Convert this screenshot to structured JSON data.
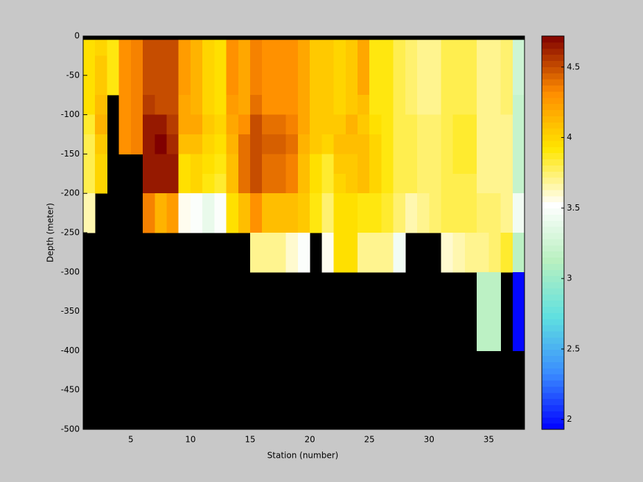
{
  "chart_data": {
    "type": "heatmap",
    "xlabel": "Station (number)",
    "ylabel": "Depth (meter)",
    "x": [
      1,
      2,
      3,
      4,
      5,
      6,
      7,
      8,
      9,
      10,
      11,
      12,
      13,
      14,
      15,
      16,
      17,
      18,
      19,
      20,
      21,
      22,
      23,
      24,
      25,
      26,
      27,
      28,
      29,
      30,
      31,
      32,
      33,
      34,
      35,
      36,
      37,
      38
    ],
    "y": [
      0,
      -5,
      -25,
      -50,
      -75,
      -100,
      -125,
      -150,
      -175,
      -200,
      -250,
      -300,
      -400,
      -500
    ],
    "xlim": [
      1,
      38
    ],
    "ylim": [
      -500,
      0
    ],
    "xticks": [
      5,
      10,
      15,
      20,
      25,
      30,
      35
    ],
    "yticks": [
      0,
      -50,
      -100,
      -150,
      -200,
      -250,
      -300,
      -350,
      -400,
      -450,
      -500
    ],
    "clim": [
      1.93,
      4.72
    ],
    "cticks": [
      2,
      2.5,
      3,
      3.5,
      4,
      4.5
    ],
    "colormap": [
      "#0000ff",
      "#3a8cff",
      "#5fe0e0",
      "#b8f0c0",
      "#ffffff",
      "#ffe600",
      "#ff8c00",
      "#800000"
    ],
    "missing_color": "#000000",
    "z": [
      [
        null,
        3.95,
        3.95,
        3.95,
        3.95,
        3.85,
        3.8,
        3.8,
        3.8,
        3.65,
        null,
        null,
        null
      ],
      [
        null,
        4.0,
        4.05,
        4.05,
        4.1,
        4.15,
        4.05,
        4.0,
        4.0,
        null,
        null,
        null,
        null
      ],
      [
        null,
        3.9,
        3.9,
        3.9,
        null,
        null,
        null,
        null,
        null,
        null,
        null,
        null,
        null
      ],
      [
        null,
        4.3,
        4.3,
        4.3,
        4.3,
        4.3,
        4.3,
        null,
        null,
        null,
        null,
        null,
        null
      ],
      [
        null,
        4.35,
        4.35,
        4.35,
        4.35,
        4.35,
        4.35,
        null,
        null,
        null,
        null,
        null,
        null
      ],
      [
        null,
        4.5,
        4.5,
        4.5,
        4.55,
        4.65,
        4.65,
        4.65,
        4.65,
        4.35,
        null,
        null,
        null
      ],
      [
        null,
        4.5,
        4.5,
        4.5,
        4.5,
        4.65,
        4.72,
        4.65,
        4.65,
        4.15,
        null,
        null,
        null
      ],
      [
        null,
        4.5,
        4.5,
        4.5,
        4.5,
        4.55,
        4.6,
        4.65,
        4.65,
        4.25,
        null,
        null,
        null
      ],
      [
        null,
        4.25,
        4.25,
        4.25,
        4.2,
        4.2,
        4.1,
        3.95,
        3.95,
        3.55,
        null,
        null,
        null
      ],
      [
        null,
        4.15,
        4.15,
        4.15,
        4.15,
        4.2,
        4.1,
        4.0,
        4.0,
        3.5,
        null,
        null,
        null
      ],
      [
        null,
        4.0,
        4.0,
        4.0,
        4.0,
        4.05,
        4.0,
        3.95,
        3.9,
        3.4,
        null,
        null,
        null
      ],
      [
        null,
        3.95,
        3.95,
        3.95,
        3.95,
        4.0,
        3.95,
        3.9,
        3.85,
        3.5,
        null,
        null,
        null
      ],
      [
        null,
        4.3,
        4.3,
        4.3,
        4.25,
        4.2,
        4.15,
        4.1,
        4.1,
        3.95,
        null,
        null,
        null
      ],
      [
        null,
        4.2,
        4.2,
        4.2,
        4.2,
        4.3,
        4.4,
        4.4,
        4.4,
        4.1,
        null,
        null,
        null
      ],
      [
        null,
        4.35,
        4.35,
        4.35,
        4.4,
        4.5,
        4.5,
        4.5,
        4.5,
        4.3,
        3.7,
        null,
        null
      ],
      [
        null,
        4.3,
        4.3,
        4.3,
        4.3,
        4.4,
        4.45,
        4.4,
        4.4,
        4.1,
        3.7,
        null,
        null
      ],
      [
        null,
        4.3,
        4.3,
        4.3,
        4.3,
        4.4,
        4.45,
        4.4,
        4.4,
        4.1,
        3.7,
        null,
        null
      ],
      [
        null,
        4.3,
        4.3,
        4.3,
        4.3,
        4.35,
        4.4,
        4.35,
        4.35,
        4.1,
        3.6,
        null,
        null
      ],
      [
        null,
        4.2,
        4.2,
        4.2,
        4.2,
        4.2,
        4.15,
        4.1,
        4.1,
        4.05,
        3.5,
        null,
        null
      ],
      [
        null,
        4.05,
        4.05,
        4.05,
        4.05,
        4.05,
        4.05,
        3.95,
        3.95,
        3.9,
        null,
        null,
        null
      ],
      [
        null,
        4.05,
        4.05,
        4.05,
        4.05,
        4.05,
        4.0,
        3.85,
        3.85,
        3.75,
        3.55,
        null,
        null
      ],
      [
        null,
        4.0,
        4.0,
        4.0,
        4.0,
        4.05,
        4.1,
        4.05,
        4.0,
        3.95,
        3.95,
        null,
        null
      ],
      [
        null,
        4.05,
        4.05,
        4.05,
        4.05,
        4.15,
        4.1,
        4.05,
        4.05,
        3.95,
        3.95,
        null,
        null
      ],
      [
        null,
        4.2,
        4.2,
        4.2,
        4.1,
        4.05,
        4.1,
        4.1,
        4.1,
        3.9,
        3.7,
        null,
        null
      ],
      [
        null,
        3.9,
        3.9,
        3.9,
        3.9,
        3.95,
        4.0,
        4.0,
        4.0,
        3.9,
        3.7,
        null,
        null
      ],
      [
        null,
        3.9,
        3.9,
        3.9,
        3.9,
        3.9,
        3.9,
        3.9,
        3.9,
        3.85,
        3.7,
        null,
        null
      ],
      [
        null,
        3.8,
        3.8,
        3.8,
        3.8,
        3.8,
        3.8,
        3.8,
        3.8,
        3.75,
        3.45,
        null,
        null
      ],
      [
        null,
        3.75,
        3.75,
        3.75,
        3.75,
        3.8,
        3.8,
        3.8,
        3.8,
        3.65,
        null,
        null,
        null
      ],
      [
        null,
        3.7,
        3.7,
        3.7,
        3.7,
        3.75,
        3.75,
        3.75,
        3.75,
        3.7,
        null,
        null,
        null
      ],
      [
        null,
        3.7,
        3.7,
        3.7,
        3.7,
        3.75,
        3.75,
        3.75,
        3.75,
        3.75,
        null,
        null,
        null
      ],
      [
        null,
        3.8,
        3.8,
        3.8,
        3.8,
        3.8,
        3.8,
        3.8,
        3.8,
        3.8,
        3.6,
        null,
        null
      ],
      [
        null,
        3.8,
        3.8,
        3.8,
        3.8,
        3.85,
        3.85,
        3.85,
        3.8,
        3.8,
        3.65,
        null,
        null
      ],
      [
        null,
        3.8,
        3.8,
        3.8,
        3.8,
        3.85,
        3.85,
        3.85,
        3.8,
        3.8,
        3.7,
        null,
        null
      ],
      [
        null,
        3.7,
        3.7,
        3.7,
        3.7,
        3.7,
        3.7,
        3.7,
        3.7,
        3.75,
        3.7,
        3.15,
        null
      ],
      [
        null,
        3.7,
        3.7,
        3.7,
        3.7,
        3.7,
        3.7,
        3.7,
        3.7,
        3.75,
        3.75,
        3.15,
        null
      ],
      [
        null,
        3.75,
        3.75,
        3.75,
        3.75,
        3.7,
        3.7,
        3.7,
        3.7,
        3.7,
        3.85,
        null,
        null
      ],
      [
        null,
        3.25,
        3.25,
        3.25,
        3.2,
        3.2,
        3.2,
        3.2,
        3.2,
        3.45,
        3.15,
        1.95,
        null
      ]
    ]
  }
}
